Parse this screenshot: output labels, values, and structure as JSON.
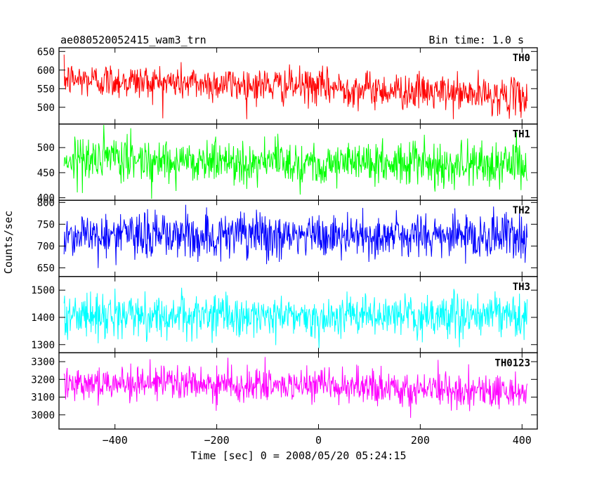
{
  "header": {
    "title": "ae080520052415_wam3_trn",
    "bin_time": "Bin time: 1.0 s"
  },
  "chart_data": {
    "type": "line",
    "title": "ae080520052415_wam3_trn",
    "subtitle": "Bin time: 1.0 s",
    "xlabel": "Time [sec] 0 = 2008/05/20 05:24:15",
    "ylabel": "Counts/sec",
    "xlim": [
      -510,
      430
    ],
    "x_range": [
      -500,
      410
    ],
    "x_ticks": [
      -400,
      -200,
      0,
      200,
      400
    ],
    "x_tick_labels": [
      "−400",
      "−200",
      "0",
      "200",
      "400"
    ],
    "grid": false,
    "legend": "none",
    "panels": [
      {
        "name": "TH0",
        "color": "#ff0000",
        "ylim": [
          455,
          660
        ],
        "y_ticks": [
          500,
          550,
          600,
          650
        ],
        "y_tick_labels": [
          "500",
          "550",
          "600",
          "650"
        ],
        "trend": [
          {
            "x": -500,
            "y": 575
          },
          {
            "x": 0,
            "y": 555
          },
          {
            "x": 410,
            "y": 527
          }
        ],
        "sigma": 24,
        "y_min": 468,
        "y_max": 655
      },
      {
        "name": "TH1",
        "color": "#00ff00",
        "ylim": [
          395,
          547
        ],
        "y_ticks": [
          400,
          450,
          500
        ],
        "y_tick_labels": [
          "400",
          "450",
          "500"
        ],
        "trend": [
          {
            "x": -500,
            "y": 478
          },
          {
            "x": 0,
            "y": 470
          },
          {
            "x": 410,
            "y": 466
          }
        ],
        "sigma": 22,
        "y_min": 398,
        "y_max": 545
      },
      {
        "name": "TH2",
        "color": "#0000ff",
        "ylim": [
          630,
          805
        ],
        "y_ticks": [
          650,
          700,
          750,
          800
        ],
        "y_tick_labels": [
          "650",
          "700",
          "750",
          "800"
        ],
        "trend": [
          {
            "x": -500,
            "y": 726
          },
          {
            "x": 0,
            "y": 722
          },
          {
            "x": 410,
            "y": 724
          }
        ],
        "sigma": 27,
        "y_min": 633,
        "y_max": 800
      },
      {
        "name": "TH3",
        "color": "#00ffff",
        "ylim": [
          1270,
          1550
        ],
        "y_ticks": [
          1300,
          1400,
          1500
        ],
        "y_tick_labels": [
          "1300",
          "1400",
          "1500"
        ],
        "trend": [
          {
            "x": -500,
            "y": 1408
          },
          {
            "x": 0,
            "y": 1404
          },
          {
            "x": 410,
            "y": 1405
          }
        ],
        "sigma": 38,
        "y_min": 1278,
        "y_max": 1540
      },
      {
        "name": "TH0123",
        "color": "#ff00ff",
        "ylim": [
          2920,
          3350
        ],
        "y_ticks": [
          3000,
          3100,
          3200,
          3300
        ],
        "y_tick_labels": [
          "3000",
          "3100",
          "3200",
          "3300"
        ],
        "trend": [
          {
            "x": -500,
            "y": 3188
          },
          {
            "x": 0,
            "y": 3158
          },
          {
            "x": 410,
            "y": 3130
          }
        ],
        "sigma": 48,
        "y_min": 2950,
        "y_max": 3340
      }
    ]
  }
}
